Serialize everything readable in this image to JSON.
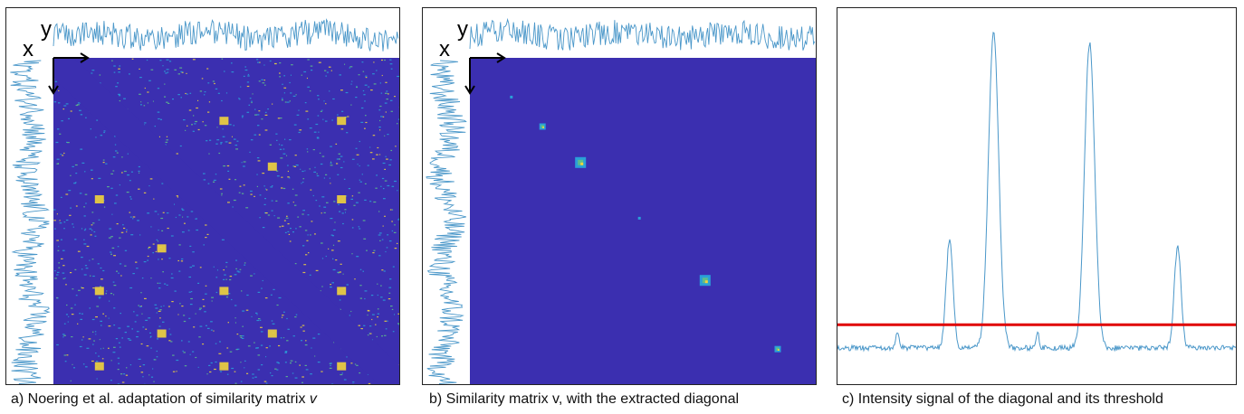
{
  "figure": {
    "captions": {
      "a": "a) Noering et al. adaptation of similarity matrix ",
      "a_italic": "v",
      "b": "b) Similarity matrix v, with the extracted diagonal",
      "c": "c) Intensity signal of the diagonal and its threshold"
    },
    "axis_labels": {
      "x": "x",
      "y": "y"
    }
  },
  "colors": {
    "matrix_background": "#3b2fb0",
    "signal": "#4a97c9",
    "threshold": "#e00000",
    "arrow": "#000000",
    "hot": "#f2d43c",
    "warm": "#5fbf8a",
    "cool": "#2aa0d8"
  },
  "chart_data": [
    {
      "type": "heatmap",
      "panel": "a",
      "description_visible": false,
      "title": "",
      "dense_pattern": true,
      "diagonal_band": "dark"
    },
    {
      "type": "heatmap",
      "panel": "b",
      "title": "",
      "highlight_blocks_along_diagonal": [
        0.12,
        0.21,
        0.32,
        0.49,
        0.68,
        0.89
      ]
    },
    {
      "type": "line",
      "panel": "c",
      "title": "",
      "xlabel": "",
      "ylabel": "",
      "peaks": [
        {
          "position": 0.15,
          "height": 0.045
        },
        {
          "position": 0.28,
          "height": 0.34
        },
        {
          "position": 0.39,
          "height": 1.0
        },
        {
          "position": 0.5,
          "height": 0.045
        },
        {
          "position": 0.63,
          "height": 0.96
        },
        {
          "position": 0.85,
          "height": 0.32
        }
      ],
      "baseline": 0.0,
      "threshold": 0.045
    }
  ]
}
